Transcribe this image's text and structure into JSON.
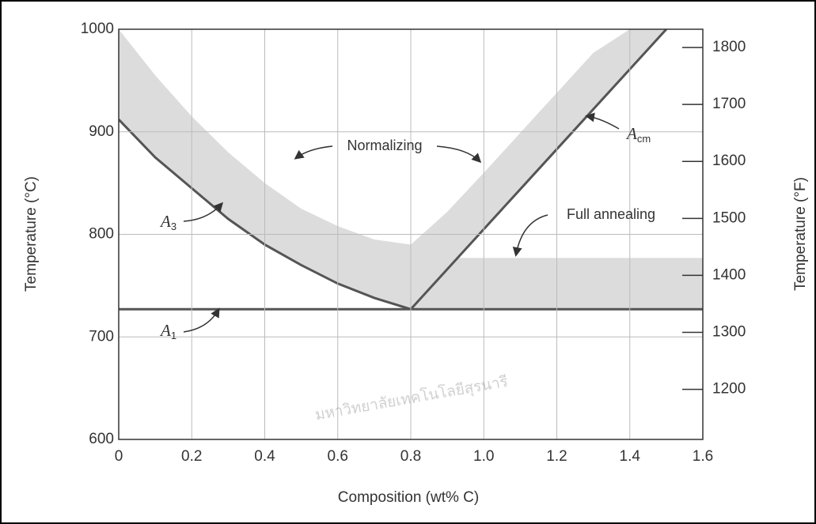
{
  "chart_data": {
    "type": "phase",
    "xlabel": "Composition (wt% C)",
    "ylabel": "Temperature (°C)",
    "y2label": "Temperature (°F)",
    "xlim": [
      0,
      1.6
    ],
    "xticks": [
      0,
      0.2,
      0.4,
      0.6,
      0.8,
      {
        "value": 1,
        "label": "1.0"
      },
      1.2,
      1.4,
      1.6
    ],
    "ylim": [
      600,
      1000
    ],
    "yticks": [
      600,
      700,
      800,
      900,
      1000
    ],
    "y2lim": [
      1112,
      1832
    ],
    "y2ticks": [
      1200,
      1300,
      1400,
      1500,
      1600,
      1700,
      1800
    ],
    "grid": true,
    "bands": [
      {
        "name": "Normalizing",
        "color": "#dcdcdc",
        "x": [
          0,
          0.1,
          0.2,
          0.3,
          0.4,
          0.5,
          0.6,
          0.7,
          0.8,
          0.9,
          1,
          1.1,
          1.2,
          1.3,
          1.4,
          1.5
        ],
        "lower": [
          912,
          875,
          845,
          815,
          790,
          770,
          752,
          738,
          727,
          766,
          805,
          844,
          883,
          922,
          961,
          1000
        ],
        "upper": [
          1000,
          955,
          915,
          880,
          850,
          825,
          808,
          795,
          790,
          822,
          860,
          899,
          938,
          977,
          1000,
          1000
        ]
      },
      {
        "name": "Full annealing",
        "color": "#dcdcdc",
        "x": [
          0.8,
          1.6
        ],
        "lower": [
          727,
          727
        ],
        "upper": [
          777,
          777
        ]
      }
    ],
    "series": [
      {
        "symbol": "A",
        "sub": "3",
        "color": "#555555",
        "x": [
          0,
          0.1,
          0.2,
          0.3,
          0.4,
          0.5,
          0.6,
          0.7,
          0.8
        ],
        "values": [
          912,
          875,
          845,
          815,
          790,
          770,
          752,
          738,
          727
        ]
      },
      {
        "symbol": "A",
        "sub": "cm",
        "color": "#555555",
        "x": [
          0.8,
          1,
          1.2,
          1.4,
          1.5
        ],
        "values": [
          727,
          805,
          883,
          961,
          1000
        ]
      },
      {
        "symbol": "A",
        "sub": "1",
        "color": "#555555",
        "x": [
          0,
          1.6
        ],
        "values": [
          727,
          727
        ]
      }
    ],
    "watermark": "มหาวิทยาลัยเทคโนโลยีสุรนารี"
  }
}
